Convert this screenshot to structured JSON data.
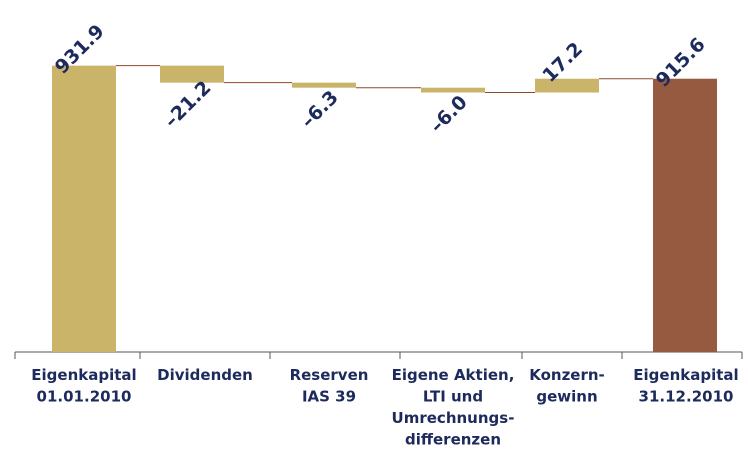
{
  "chart_data": {
    "type": "waterfall",
    "categories": [
      [
        "Eigenkapital",
        "01.01.2010"
      ],
      [
        "Dividenden"
      ],
      [
        "Reserven",
        "IAS 39"
      ],
      [
        "Eigene Aktien,",
        "LTI und",
        "Umrechnungs-",
        "differenzen"
      ],
      [
        "Konzern-",
        "gewinn"
      ],
      [
        "Eigenkapital",
        "31.12.2010"
      ]
    ],
    "values": [
      931.9,
      -21.2,
      -6.3,
      -6.0,
      17.2,
      915.6
    ],
    "value_labels": [
      "931.9",
      "–21.2",
      "–6.3",
      "–6.0",
      "17.2",
      "915.6"
    ],
    "totals": [
      true,
      false,
      false,
      false,
      false,
      true
    ],
    "colors": [
      "#c9b46a",
      "#c9b46a",
      "#c9b46a",
      "#c9b46a",
      "#c9b46a",
      "#955a40"
    ],
    "connector_color": "#8e4a2c",
    "ylim": [
      575,
      1000
    ]
  }
}
